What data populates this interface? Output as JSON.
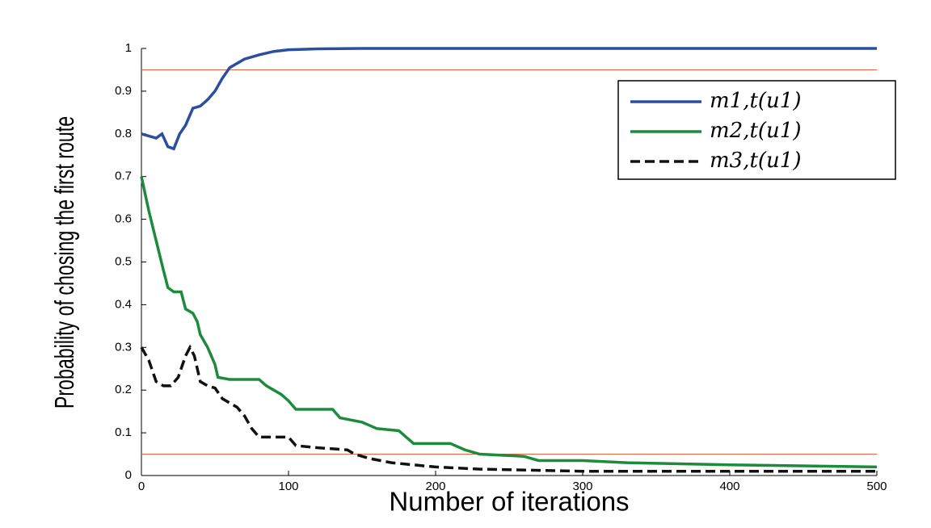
{
  "chart_data": {
    "type": "line",
    "xlabel": "Number of iterations",
    "ylabel": "Probability of chosing the first route",
    "xlim": [
      0,
      500
    ],
    "ylim": [
      0,
      1
    ],
    "xticks": [
      0,
      100,
      200,
      300,
      400,
      500
    ],
    "yticks": [
      0,
      0.1,
      0.2,
      0.3,
      0.4,
      0.5,
      0.6,
      0.7,
      0.8,
      0.9,
      1
    ],
    "hlines": [
      0.95,
      0.05
    ],
    "hline_color": "#e8643c",
    "legend": "upper right",
    "series": [
      {
        "name": "m1,t(u1)",
        "color": "#2a4fa0",
        "dashed": false,
        "x": [
          0,
          5,
          10,
          14,
          18,
          22,
          26,
          30,
          35,
          40,
          45,
          50,
          55,
          60,
          70,
          80,
          90,
          100,
          120,
          150,
          500
        ],
        "values": [
          0.8,
          0.795,
          0.79,
          0.8,
          0.77,
          0.765,
          0.8,
          0.82,
          0.86,
          0.865,
          0.88,
          0.9,
          0.93,
          0.955,
          0.975,
          0.985,
          0.993,
          0.997,
          0.999,
          1,
          1
        ]
      },
      {
        "name": "m2,t(u1)",
        "color": "#1e8a3c",
        "dashed": false,
        "x": [
          0,
          5,
          10,
          15,
          18,
          22,
          27,
          30,
          35,
          38,
          40,
          45,
          50,
          52,
          60,
          80,
          85,
          95,
          100,
          105,
          130,
          135,
          150,
          160,
          175,
          180,
          185,
          210,
          220,
          230,
          260,
          270,
          300,
          330,
          400,
          500
        ],
        "values": [
          0.7,
          0.62,
          0.55,
          0.48,
          0.44,
          0.43,
          0.43,
          0.39,
          0.38,
          0.36,
          0.33,
          0.3,
          0.26,
          0.23,
          0.225,
          0.225,
          0.21,
          0.19,
          0.175,
          0.155,
          0.155,
          0.135,
          0.125,
          0.11,
          0.105,
          0.09,
          0.075,
          0.075,
          0.06,
          0.05,
          0.045,
          0.035,
          0.035,
          0.03,
          0.025,
          0.02
        ]
      },
      {
        "name": "m3,t(u1)",
        "color": "#111111",
        "dashed": true,
        "x": [
          0,
          5,
          10,
          15,
          20,
          25,
          30,
          33,
          36,
          40,
          45,
          50,
          55,
          65,
          70,
          75,
          80,
          100,
          105,
          120,
          140,
          145,
          155,
          170,
          200,
          230,
          300,
          500
        ],
        "values": [
          0.3,
          0.27,
          0.22,
          0.21,
          0.21,
          0.23,
          0.28,
          0.3,
          0.28,
          0.22,
          0.21,
          0.205,
          0.18,
          0.16,
          0.14,
          0.11,
          0.09,
          0.09,
          0.07,
          0.065,
          0.06,
          0.05,
          0.04,
          0.03,
          0.02,
          0.015,
          0.01,
          0.01
        ]
      }
    ]
  }
}
